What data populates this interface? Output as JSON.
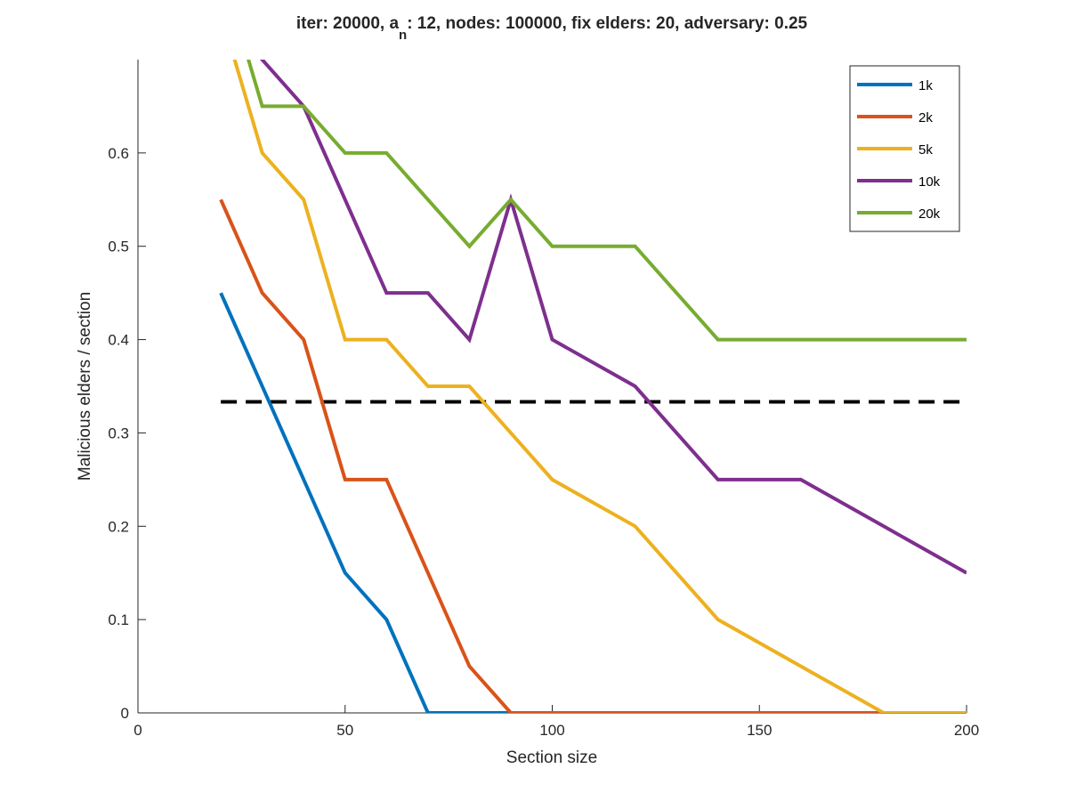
{
  "chart_data": {
    "type": "line",
    "title_parts": {
      "prefix": "iter: 20000, a",
      "subscript": "n",
      "suffix": ": 12, nodes: 100000, fix elders: 20, adversary: 0.25"
    },
    "xlabel": "Section size",
    "ylabel": "Malicious elders / section",
    "xlim": [
      0,
      200
    ],
    "ylim": [
      0,
      0.7
    ],
    "x_ticks": [
      0,
      50,
      100,
      150,
      200
    ],
    "x_tick_labels": [
      "0",
      "50",
      "100",
      "150",
      "200"
    ],
    "y_ticks": [
      0,
      0.1,
      0.2,
      0.3,
      0.4,
      0.5,
      0.6
    ],
    "y_tick_labels": [
      "0",
      "0.1",
      "0.2",
      "0.3",
      "0.4",
      "0.5",
      "0.6"
    ],
    "grid": false,
    "legend_position": "top-right",
    "series": [
      {
        "name": "1k",
        "color": "#0072BD",
        "x": [
          20,
          30,
          40,
          50,
          60,
          70,
          80,
          90,
          100,
          120,
          140,
          160,
          180,
          200
        ],
        "y": [
          0.45,
          0.35,
          0.25,
          0.15,
          0.1,
          0,
          0,
          0,
          0,
          0,
          0,
          0,
          0,
          0
        ]
      },
      {
        "name": "2k",
        "color": "#D95319",
        "x": [
          20,
          30,
          40,
          50,
          60,
          70,
          80,
          90,
          100,
          120,
          140,
          160,
          180,
          200
        ],
        "y": [
          0.55,
          0.45,
          0.4,
          0.25,
          0.25,
          0.15,
          0.05,
          0,
          0,
          0,
          0,
          0,
          0,
          0
        ]
      },
      {
        "name": "5k",
        "color": "#EDB120",
        "x": [
          20,
          30,
          40,
          50,
          60,
          70,
          80,
          90,
          100,
          120,
          140,
          160,
          180,
          200
        ],
        "y": [
          0.75,
          0.6,
          0.55,
          0.4,
          0.4,
          0.35,
          0.35,
          0.3,
          0.25,
          0.2,
          0.1,
          0.05,
          0,
          0
        ]
      },
      {
        "name": "10k",
        "color": "#7E2F8E",
        "x": [
          20,
          30,
          40,
          50,
          60,
          70,
          80,
          90,
          100,
          120,
          140,
          160,
          180,
          200
        ],
        "y": [
          0.75,
          0.7,
          0.65,
          0.55,
          0.45,
          0.45,
          0.4,
          0.55,
          0.4,
          0.35,
          0.25,
          0.25,
          0.2,
          0.15
        ]
      },
      {
        "name": "20k",
        "color": "#77AC30",
        "x": [
          20,
          30,
          40,
          50,
          60,
          70,
          80,
          90,
          100,
          120,
          140,
          160,
          180,
          200
        ],
        "y": [
          0.8,
          0.65,
          0.65,
          0.6,
          0.6,
          0.55,
          0.5,
          0.55,
          0.5,
          0.5,
          0.4,
          0.4,
          0.4,
          0.4
        ]
      }
    ],
    "reference_line": {
      "y": 0.3333,
      "x_range": [
        20,
        200
      ],
      "style": "dashed",
      "color": "#000000"
    }
  }
}
